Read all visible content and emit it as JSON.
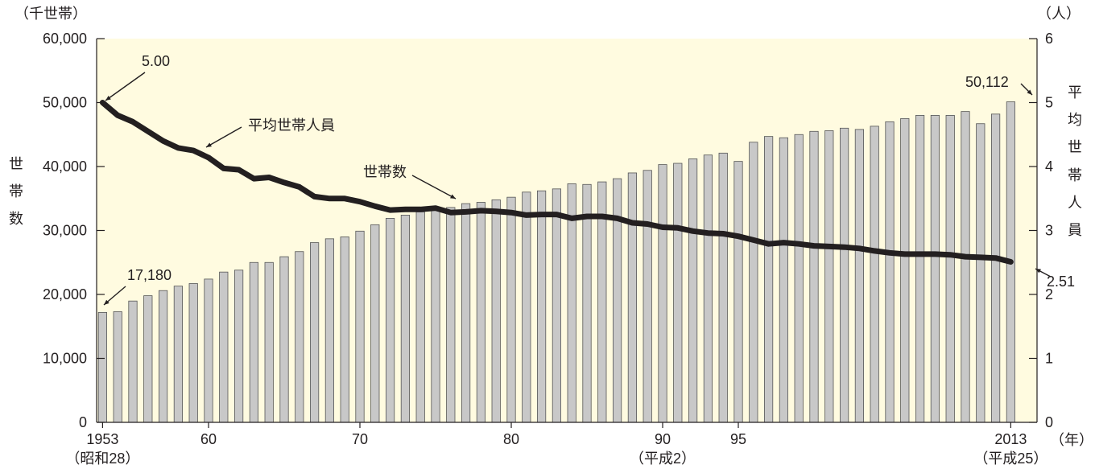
{
  "chart_data": {
    "type": "bar+line",
    "left_axis": {
      "unit": "（千世帯）",
      "label": "世帯数",
      "ticks": [
        "0",
        "10,000",
        "20,000",
        "30,000",
        "40,000",
        "50,000",
        "60,000"
      ],
      "ylim": [
        0,
        60000
      ]
    },
    "right_axis": {
      "unit": "（人）",
      "label": "平均世帯人員",
      "ticks": [
        "0",
        "1",
        "2",
        "3",
        "4",
        "5",
        "6"
      ],
      "ylim": [
        0,
        6
      ]
    },
    "x_axis": {
      "unit": "（年）",
      "tick_labels": [
        {
          "year": 1953,
          "label": "1953",
          "sub": "（昭和28）"
        },
        {
          "year": 1960,
          "label": "60",
          "sub": ""
        },
        {
          "year": 1970,
          "label": "70",
          "sub": ""
        },
        {
          "year": 1980,
          "label": "80",
          "sub": ""
        },
        {
          "year": 1990,
          "label": "90",
          "sub": "（平成2）"
        },
        {
          "year": 1995,
          "label": "95",
          "sub": ""
        },
        {
          "year": 2013,
          "label": "2013",
          "sub": "（平成25）"
        }
      ],
      "range": [
        1953,
        2013
      ]
    },
    "years": [
      1953,
      1954,
      1955,
      1956,
      1957,
      1958,
      1959,
      1960,
      1961,
      1962,
      1963,
      1964,
      1965,
      1966,
      1967,
      1968,
      1969,
      1970,
      1971,
      1972,
      1973,
      1974,
      1975,
      1976,
      1977,
      1978,
      1979,
      1980,
      1981,
      1982,
      1983,
      1984,
      1985,
      1986,
      1987,
      1988,
      1989,
      1990,
      1991,
      1992,
      1993,
      1994,
      1995,
      1996,
      1997,
      1998,
      1999,
      2000,
      2001,
      2002,
      2003,
      2004,
      2005,
      2006,
      2007,
      2008,
      2009,
      2010,
      2011,
      2012,
      2013
    ],
    "series": [
      {
        "name": "世帯数",
        "type": "bar",
        "axis": "left",
        "color": "#c8c8c8",
        "values": [
          17180,
          17300,
          18970,
          19800,
          20600,
          21300,
          21700,
          22400,
          23500,
          23800,
          25000,
          25000,
          25900,
          26700,
          28100,
          28700,
          29000,
          29900,
          30900,
          31900,
          32400,
          32900,
          33200,
          33600,
          34200,
          34400,
          34800,
          35200,
          36000,
          36200,
          36500,
          37300,
          37200,
          37600,
          38100,
          39000,
          39400,
          40300,
          40500,
          41200,
          41800,
          42100,
          40800,
          43800,
          44700,
          44500,
          45000,
          45500,
          45600,
          46000,
          45800,
          46300,
          47000,
          47500,
          48000,
          48000,
          48000,
          48600,
          46700,
          48200,
          50112
        ]
      },
      {
        "name": "平均世帯人員",
        "type": "line",
        "axis": "right",
        "color": "#231f20",
        "values": [
          5.0,
          4.8,
          4.7,
          4.55,
          4.4,
          4.29,
          4.25,
          4.14,
          3.97,
          3.95,
          3.81,
          3.83,
          3.75,
          3.68,
          3.53,
          3.5,
          3.5,
          3.45,
          3.38,
          3.32,
          3.33,
          3.33,
          3.35,
          3.28,
          3.29,
          3.31,
          3.3,
          3.28,
          3.24,
          3.25,
          3.25,
          3.19,
          3.22,
          3.22,
          3.19,
          3.12,
          3.1,
          3.05,
          3.04,
          2.99,
          2.96,
          2.95,
          2.91,
          2.85,
          2.79,
          2.81,
          2.79,
          2.76,
          2.75,
          2.74,
          2.72,
          2.68,
          2.65,
          2.63,
          2.63,
          2.63,
          2.62,
          2.59,
          2.58,
          2.57,
          2.51
        ]
      }
    ],
    "annotations": [
      {
        "text": "5.00"
      },
      {
        "text": "平均世帯人員"
      },
      {
        "text": "世帯数"
      },
      {
        "text": "17,180"
      },
      {
        "text": "50,112"
      },
      {
        "text": "2.51"
      }
    ],
    "colors": {
      "plot_background": "#fffbe0",
      "bar": "#c8c8c8",
      "bar_outline": "#555555",
      "line": "#231f20"
    }
  }
}
